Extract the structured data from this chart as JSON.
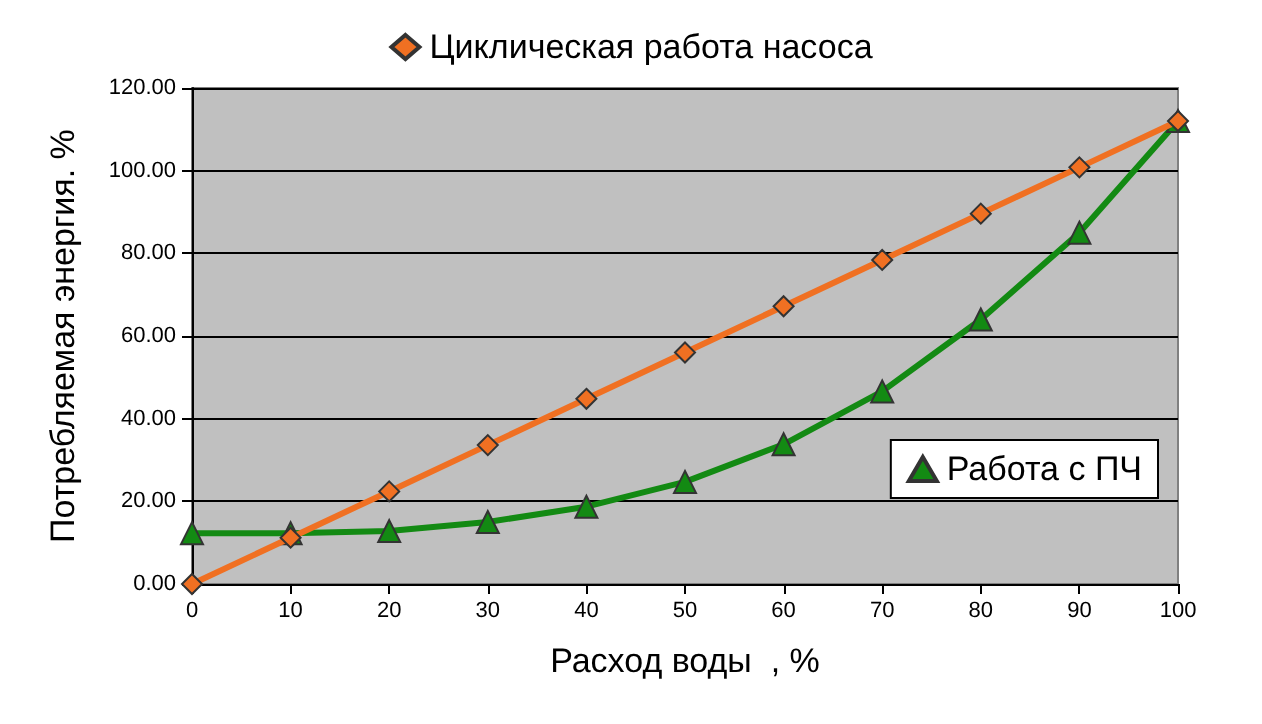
{
  "chart_data": {
    "type": "line",
    "xlabel": "Расход воды  , %",
    "ylabel": "Потребляемая энергия. %",
    "x": [
      0,
      10,
      20,
      30,
      40,
      50,
      60,
      70,
      80,
      90,
      100
    ],
    "series": [
      {
        "name": "Циклическая работа насоса",
        "color": "#f07022",
        "marker": "diamond",
        "values": [
          0,
          11.2,
          22.4,
          33.6,
          44.8,
          56,
          67.2,
          78.4,
          89.6,
          100.8,
          112
        ]
      },
      {
        "name": "Работа с ПЧ",
        "color": "#138a13",
        "marker": "triangle",
        "values": [
          12.3,
          12.3,
          12.8,
          15,
          18.7,
          24.7,
          33.8,
          46.6,
          64,
          85,
          112
        ]
      }
    ],
    "xlim": [
      0,
      100
    ],
    "xticks": [
      0,
      10,
      20,
      30,
      40,
      50,
      60,
      70,
      80,
      90,
      100
    ],
    "ylim": [
      0,
      120
    ],
    "yticks": [
      {
        "value": 0,
        "label": "0.00"
      },
      {
        "value": 20,
        "label": "20.00"
      },
      {
        "value": 40,
        "label": "40.00"
      },
      {
        "value": 60,
        "label": "60.00"
      },
      {
        "value": 80,
        "label": "80.00"
      },
      {
        "value": 100,
        "label": "100.00"
      },
      {
        "value": 120,
        "label": "120.00"
      }
    ],
    "grid": "y",
    "legend": "top"
  }
}
